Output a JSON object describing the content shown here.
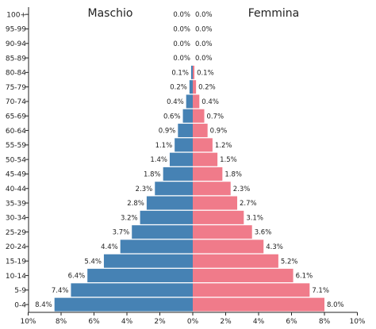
{
  "chart_data": {
    "type": "bar",
    "orientation": "horizontal-diverging",
    "categories": [
      "100+",
      "95-99",
      "90-94",
      "85-89",
      "80-84",
      "75-79",
      "70-74",
      "65-69",
      "60-64",
      "55-59",
      "50-54",
      "45-49",
      "40-44",
      "35-39",
      "30-34",
      "25-29",
      "20-24",
      "15-19",
      "10-14",
      "5-9",
      "0-4"
    ],
    "series": [
      {
        "name": "Maschio",
        "color": "#4682b4",
        "values": [
          0.0,
          0.0,
          0.0,
          0.0,
          0.1,
          0.2,
          0.4,
          0.6,
          0.9,
          1.1,
          1.4,
          1.8,
          2.3,
          2.8,
          3.2,
          3.7,
          4.4,
          5.4,
          6.4,
          7.4,
          8.4
        ],
        "labels": [
          "0.0%",
          "0.0%",
          "0.0%",
          "0.0%",
          "0.1%",
          "0.2%",
          "0.4%",
          "0.6%",
          "0.9%",
          "1.1%",
          "1.4%",
          "1.8%",
          "2.3%",
          "2.8%",
          "3.2%",
          "3.7%",
          "4.4%",
          "5.4%",
          "6.4%",
          "7.4%",
          "8.4%"
        ]
      },
      {
        "name": "Femmina",
        "color": "#f07b8a",
        "values": [
          0.0,
          0.0,
          0.0,
          0.0,
          0.1,
          0.2,
          0.4,
          0.7,
          0.9,
          1.2,
          1.5,
          1.8,
          2.3,
          2.7,
          3.1,
          3.6,
          4.3,
          5.2,
          6.1,
          7.1,
          8.0
        ],
        "labels": [
          "0.0%",
          "0.0%",
          "0.0%",
          "0.0%",
          "0.1%",
          "0.2%",
          "0.4%",
          "0.7%",
          "0.9%",
          "1.2%",
          "1.5%",
          "1.8%",
          "2.3%",
          "2.7%",
          "3.1%",
          "3.6%",
          "4.3%",
          "5.2%",
          "6.1%",
          "7.1%",
          "8.0%"
        ]
      }
    ],
    "xlim": [
      -10,
      10
    ],
    "xticks": [
      "10%",
      "8%",
      "6%",
      "4%",
      "2%",
      "0%",
      "2%",
      "4%",
      "6%",
      "8%",
      "10%"
    ],
    "grid": false
  }
}
